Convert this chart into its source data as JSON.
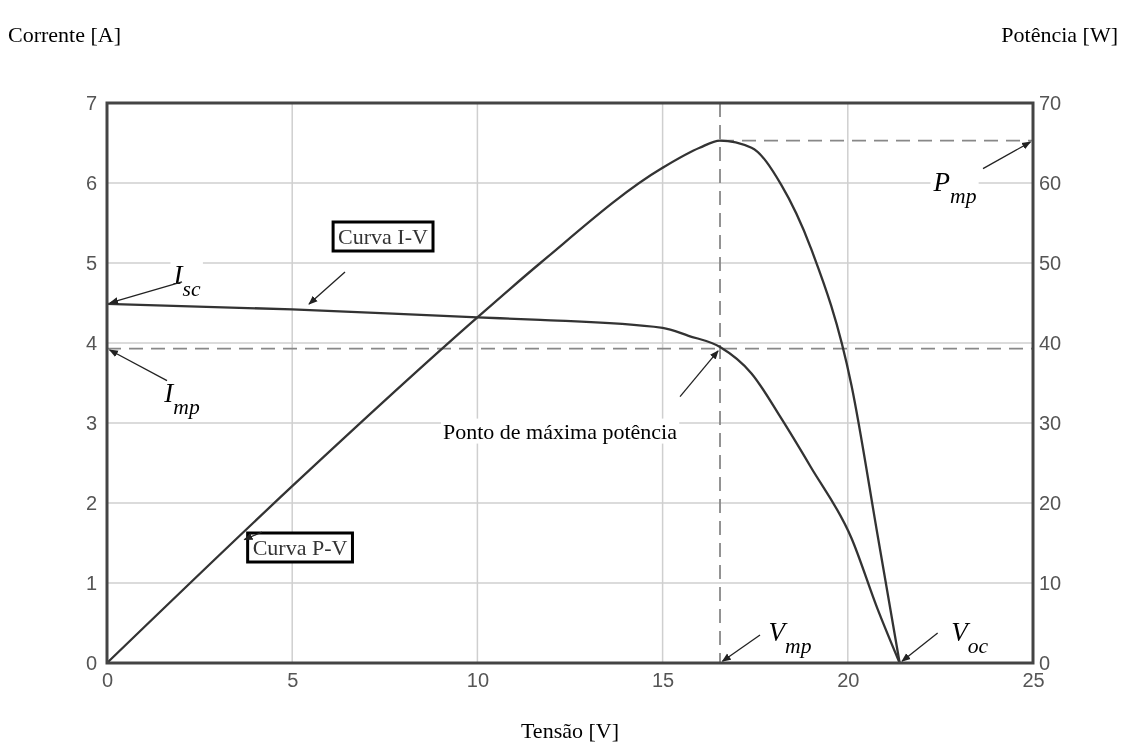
{
  "chart_data": {
    "type": "line",
    "xlabel": "Tensão [V]",
    "ylabel": "Corrente [A]",
    "y2label": "Potência [W]",
    "xlim": [
      0,
      25
    ],
    "xticks": [
      0,
      5,
      10,
      15,
      20,
      25
    ],
    "ylim": [
      0,
      7
    ],
    "yticks": [
      0,
      1,
      2,
      3,
      4,
      5,
      6,
      7
    ],
    "y2lim": [
      0,
      70
    ],
    "y2ticks": [
      0,
      10,
      20,
      30,
      40,
      50,
      60,
      70
    ],
    "grid": true,
    "line_style": "solid",
    "marker": "none",
    "series": [
      {
        "name": "Curva I-V",
        "color": "#333333",
        "axis": "y",
        "x": [
          0,
          5,
          10,
          11.7,
          15,
          15.7,
          16.55,
          17.4,
          18.2,
          19,
          20.1,
          20.8,
          21.4
        ],
        "values": [
          4.49,
          4.42,
          4.32,
          4.29,
          4.19,
          4.09,
          3.95,
          3.62,
          3.06,
          2.45,
          1.56,
          0.68,
          0
        ]
      },
      {
        "name": "Curva P-V",
        "color": "#333333",
        "axis": "y2",
        "x": [
          0,
          5,
          10,
          11.7,
          15,
          16,
          16.55,
          17.4,
          18.2,
          19,
          20.1,
          20.8,
          21.4
        ],
        "values": [
          0,
          22.1,
          43.2,
          50,
          61.9,
          64.4,
          65.3,
          64.4,
          59.8,
          51.9,
          34.7,
          16.1,
          0
        ]
      }
    ],
    "ref_lines": [
      {
        "axis": "x",
        "value": 16.55,
        "line_style": "dashed",
        "color": "#888888"
      },
      {
        "axis": "y",
        "value": 3.93,
        "line_style": "dashed",
        "color": "#888888"
      },
      {
        "axis": "y2",
        "value": 65.3,
        "line_style": "dashed",
        "color": "#888888"
      }
    ],
    "annotations": [
      {
        "text": "I$_{sc}$",
        "x": 0,
        "y": 4.49
      },
      {
        "text": "I$_{mp}$",
        "x": 0,
        "y": 3.93
      },
      {
        "text": "Ponto de máxima potência",
        "x": 16.55,
        "y": 3.93
      },
      {
        "text": "P$_{mp}$",
        "x": 25,
        "y": 6.53
      },
      {
        "text": "V$_{mp}$",
        "x": 16.55,
        "y": 0
      },
      {
        "text": "V$_{oc}$",
        "x": 21.4,
        "y": 0
      }
    ]
  }
}
